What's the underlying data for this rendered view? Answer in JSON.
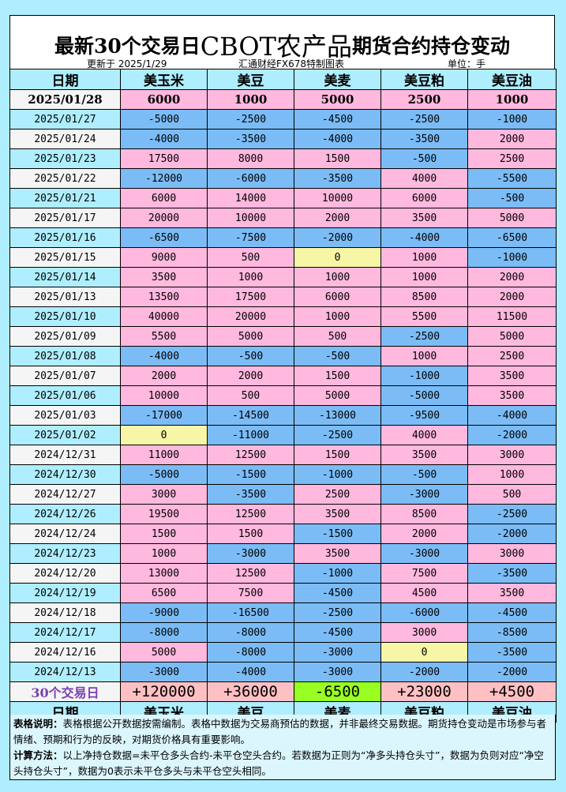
{
  "title": {
    "part1": "最新30个交易日",
    "part2": "CBOT农产品",
    "part3": "期货合约持仓变动"
  },
  "subheader": {
    "updated": "更新于 2025/1/29",
    "source": "汇通财经FX678特制图表",
    "unit": "单位：手"
  },
  "columns": [
    "日期",
    "美玉米",
    "美豆",
    "美麦",
    "美豆粕",
    "美豆油"
  ],
  "colors": {
    "positive": "#ffb8de",
    "negative": "#7bbcf6",
    "zero": "#f6f6a6",
    "total_positive": "#ffc0c4",
    "total_negative": "#99ff22"
  },
  "rows": [
    [
      "2025/01/28",
      "6000",
      "1000",
      "5000",
      "2500",
      "1000"
    ],
    [
      "2025/01/27",
      "-5000",
      "-2500",
      "-4500",
      "-2500",
      "-1000"
    ],
    [
      "2025/01/24",
      "-4000",
      "-3500",
      "-4000",
      "-3500",
      "2000"
    ],
    [
      "2025/01/23",
      "17500",
      "8000",
      "1500",
      "-500",
      "2500"
    ],
    [
      "2025/01/22",
      "-12000",
      "-6000",
      "-3500",
      "4000",
      "-5500"
    ],
    [
      "2025/01/21",
      "6000",
      "14000",
      "10000",
      "6000",
      "-500"
    ],
    [
      "2025/01/17",
      "20000",
      "10000",
      "2000",
      "3500",
      "5000"
    ],
    [
      "2025/01/16",
      "-6500",
      "-7500",
      "-2000",
      "-4000",
      "-6500"
    ],
    [
      "2025/01/15",
      "9000",
      "500",
      "0",
      "1000",
      "-1000"
    ],
    [
      "2025/01/14",
      "3500",
      "1000",
      "1000",
      "1000",
      "2000"
    ],
    [
      "2025/01/13",
      "13500",
      "17500",
      "6000",
      "8500",
      "2000"
    ],
    [
      "2025/01/10",
      "40000",
      "20000",
      "1000",
      "5500",
      "11500"
    ],
    [
      "2025/01/09",
      "5500",
      "5000",
      "500",
      "-2500",
      "5000"
    ],
    [
      "2025/01/08",
      "-4000",
      "-500",
      "-500",
      "1000",
      "2500"
    ],
    [
      "2025/01/07",
      "2000",
      "2000",
      "1500",
      "-1000",
      "3500"
    ],
    [
      "2025/01/06",
      "10000",
      "500",
      "5000",
      "-5000",
      "3500"
    ],
    [
      "2025/01/03",
      "-17000",
      "-14500",
      "-13000",
      "-9500",
      "-4000"
    ],
    [
      "2025/01/02",
      "0",
      "-11000",
      "-2500",
      "4000",
      "-2000"
    ],
    [
      "2024/12/31",
      "11000",
      "12500",
      "1500",
      "3500",
      "3000"
    ],
    [
      "2024/12/30",
      "-5000",
      "-1500",
      "-1000",
      "-500",
      "1000"
    ],
    [
      "2024/12/27",
      "3000",
      "-3500",
      "2500",
      "-3000",
      "500"
    ],
    [
      "2024/12/26",
      "19500",
      "12500",
      "3500",
      "8500",
      "-2500"
    ],
    [
      "2024/12/24",
      "1500",
      "1500",
      "-1500",
      "2000",
      "-2000"
    ],
    [
      "2024/12/23",
      "1000",
      "-3000",
      "3500",
      "-3000",
      "3000"
    ],
    [
      "2024/12/20",
      "13000",
      "12500",
      "-1000",
      "7500",
      "-3500"
    ],
    [
      "2024/12/19",
      "6500",
      "7500",
      "-4500",
      "4500",
      "3500"
    ],
    [
      "2024/12/18",
      "-9000",
      "-16500",
      "-2500",
      "-6000",
      "-4500"
    ],
    [
      "2024/12/17",
      "-8000",
      "-8000",
      "-4500",
      "3000",
      "-8500"
    ],
    [
      "2024/12/16",
      "5000",
      "-8000",
      "-3000",
      "0",
      "-3500"
    ],
    [
      "2024/12/13",
      "-3000",
      "-4000",
      "-3000",
      "-2000",
      "-2000"
    ]
  ],
  "totals": [
    "30个交易日",
    "+120000",
    "+36000",
    "-6500",
    "+23000",
    "+4500"
  ],
  "notes": {
    "desc_label": "表格说明：",
    "desc": "表格根据公开数据按需编制。表格中数据为交易商预估的数据，并非最终交易数据。期货持仓变动是市场参与者情绪、预期和行为的反映，对期货价格具有重要影响。",
    "calc_label": "计算方法：",
    "calc": "以上净持仓数据=未平仓多头合约-未平仓空头合约。若数据为正则为“净多头持仓头寸”，数据为负则对应“净空头持仓头寸”，数据为0表示未平仓多头与未平仓空头相同。"
  }
}
